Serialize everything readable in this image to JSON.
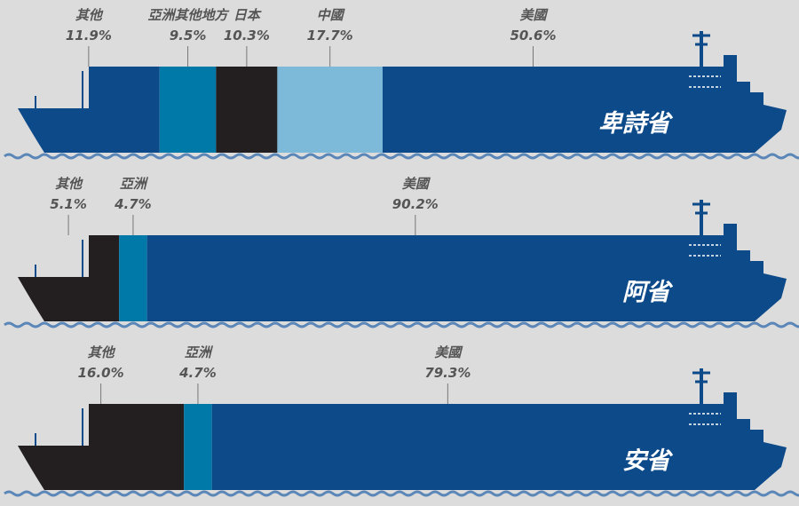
{
  "chart_data": [
    {
      "type": "ship-bar",
      "title": "卑詩省",
      "series": [
        {
          "name": "其他",
          "color": "#0d4a8a",
          "values": [
            11.9
          ],
          "value_labels": [
            "11.9%"
          ]
        },
        {
          "name": "亞洲其他地方",
          "color": "#0079a8",
          "values": [
            9.5
          ],
          "value_labels": [
            "9.5%"
          ]
        },
        {
          "name": "日本",
          "color": "#231f20",
          "values": [
            10.3
          ],
          "value_labels": [
            "10.3%"
          ]
        },
        {
          "name": "中國",
          "color": "#7db9d9",
          "values": [
            17.7
          ],
          "value_labels": [
            "17.7%"
          ]
        },
        {
          "name": "美國",
          "color": "#0d4a8a",
          "values": [
            50.6
          ],
          "value_labels": [
            "50.6%"
          ]
        }
      ]
    },
    {
      "type": "ship-bar",
      "title": "阿省",
      "series": [
        {
          "name": "其他",
          "color": "#231f20",
          "values": [
            5.1
          ],
          "value_labels": [
            "5.1%"
          ]
        },
        {
          "name": "亞洲",
          "color": "#0079a8",
          "values": [
            4.7
          ],
          "value_labels": [
            "4.7%"
          ]
        },
        {
          "name": "美國",
          "color": "#0d4a8a",
          "values": [
            90.2
          ],
          "value_labels": [
            "90.2%"
          ]
        }
      ]
    },
    {
      "type": "ship-bar",
      "title": "安省",
      "series": [
        {
          "name": "其他",
          "color": "#231f20",
          "values": [
            16.0
          ],
          "value_labels": [
            "16.0%"
          ]
        },
        {
          "name": "亞洲",
          "color": "#0079a8",
          "values": [
            4.7
          ],
          "value_labels": [
            "4.7%"
          ]
        },
        {
          "name": "美國",
          "color": "#0d4a8a",
          "values": [
            79.3
          ],
          "value_labels": [
            "79.3%"
          ]
        }
      ]
    }
  ]
}
